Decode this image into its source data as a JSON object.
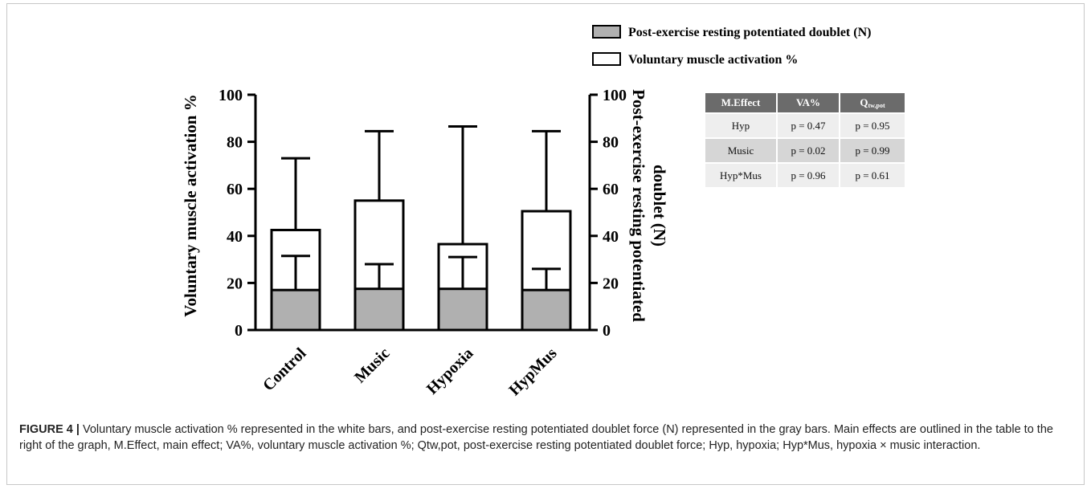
{
  "chart_data": {
    "type": "bar",
    "categories": [
      "Control",
      "Music",
      "Hypoxia",
      "HypMus"
    ],
    "series": [
      {
        "name": "Voluntary muscle activation %",
        "values": [
          42.5,
          55,
          36.5,
          50.5
        ],
        "error_upper": [
          73,
          84.5,
          86.5,
          84.5
        ],
        "fill": "#ffffff"
      },
      {
        "name": "Post-exercise resting potentiated doublet (N)",
        "values": [
          17,
          17.5,
          17.5,
          17
        ],
        "error_upper": [
          31.5,
          28,
          31,
          26
        ],
        "fill": "#b0b0b0"
      }
    ],
    "ylabel_left": "Voluntary muscle activation %",
    "ylabel_right": "Post-exercise resting potentiated doublet (N)",
    "ylim": [
      0,
      100
    ],
    "yticks": [
      "0",
      "20",
      "40",
      "60",
      "80",
      "100"
    ],
    "stacking": "overlaid",
    "legend_position": "top-right",
    "grid": false
  },
  "legend": {
    "gray": "Post-exercise resting potentiated doublet (N)",
    "white": "Voluntary muscle activation %"
  },
  "table": {
    "headers": [
      "M.Effect",
      "VA%"
    ],
    "q_header": {
      "main": "Q",
      "sub": "tw,pot"
    },
    "rows": [
      [
        "Hyp",
        "p = 0.47",
        "p = 0.95"
      ],
      [
        "Music",
        "p = 0.02",
        "p = 0.99"
      ],
      [
        "Hyp*Mus",
        "p = 0.96",
        "p = 0.61"
      ]
    ]
  },
  "caption": {
    "label": "FIGURE 4 |",
    "text": " Voluntary muscle activation % represented in the white bars, and post-exercise resting potentiated doublet force (N) represented in the gray bars. Main effects are outlined in the table to the right of the graph, M.Effect, main effect; VA%, voluntary muscle activation %; Qtw,pot, post-exercise resting potentiated doublet force; Hyp, hypoxia; Hyp*Mus, hypoxia × music interaction."
  },
  "colors": {
    "gray_bar": "#b0b0b0",
    "header_bg": "#6b6b6b",
    "row_light": "#eeeeee",
    "row_dark": "#d6d6d6"
  }
}
